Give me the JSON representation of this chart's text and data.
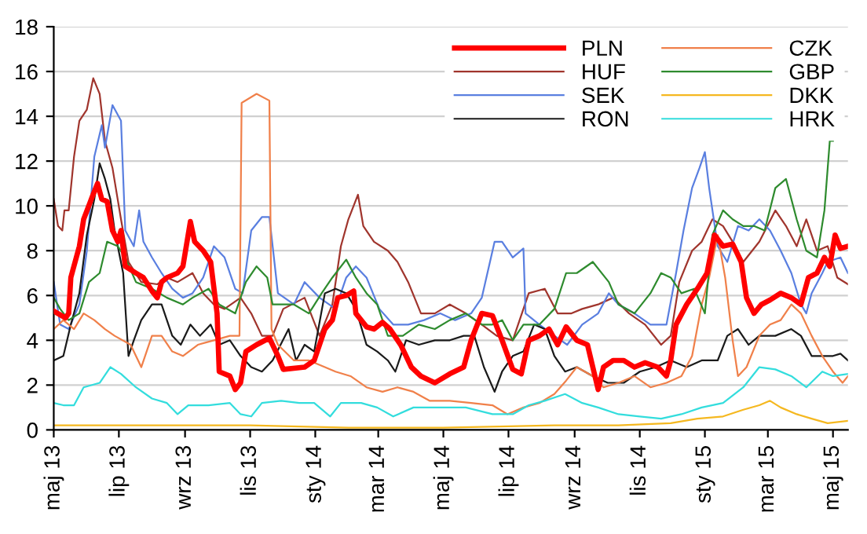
{
  "chart_data": {
    "type": "line",
    "grid": "y",
    "legend": "top right",
    "ylim": [
      0,
      18
    ],
    "yticks": [
      0,
      2,
      4,
      6,
      8,
      10,
      12,
      14,
      16,
      18
    ],
    "xlim": [
      "2013-05-01",
      "2015-05-15"
    ],
    "xticks": [
      {
        "value": "2013-05-01",
        "label": "maj 13"
      },
      {
        "value": "2013-07-01",
        "label": "lip 13"
      },
      {
        "value": "2013-09-01",
        "label": "wrz 13"
      },
      {
        "value": "2013-11-01",
        "label": "lis 13"
      },
      {
        "value": "2014-01-01",
        "label": "sty 14"
      },
      {
        "value": "2014-03-01",
        "label": "mar 14"
      },
      {
        "value": "2014-05-01",
        "label": "maj 14"
      },
      {
        "value": "2014-07-01",
        "label": "lip 14"
      },
      {
        "value": "2014-09-01",
        "label": "wrz 14"
      },
      {
        "value": "2014-11-01",
        "label": "lis 14"
      },
      {
        "value": "2015-01-01",
        "label": "sty 15"
      },
      {
        "value": "2015-03-01",
        "label": "mar 15"
      },
      {
        "value": "2015-05-01",
        "label": "maj 15"
      }
    ],
    "series": [
      {
        "name": "PLN",
        "color": "#ff0000",
        "x": [
          "2013-05-01",
          "2013-05-12",
          "2013-05-15",
          "2013-05-17",
          "2013-05-25",
          "2013-05-29",
          "2013-06-06",
          "2013-06-11",
          "2013-06-15",
          "2013-06-20",
          "2013-06-25",
          "2013-06-30",
          "2013-07-03",
          "2013-07-07",
          "2013-07-17",
          "2013-07-24",
          "2013-08-01",
          "2013-08-06",
          "2013-08-10",
          "2013-08-15",
          "2013-08-25",
          "2013-08-30",
          "2013-09-06",
          "2013-09-10",
          "2013-09-18",
          "2013-09-25",
          "2013-10-01",
          "2013-10-03",
          "2013-10-13",
          "2013-10-18",
          "2013-10-23",
          "2013-10-28",
          "2013-11-07",
          "2013-11-19",
          "2013-11-27",
          "2013-12-02",
          "2013-12-22",
          "2013-12-31",
          "2014-01-10",
          "2014-01-17",
          "2014-01-22",
          "2014-01-30",
          "2014-02-06",
          "2014-02-08",
          "2014-02-18",
          "2014-02-25",
          "2014-03-05",
          "2014-03-12",
          "2014-03-22",
          "2014-04-01",
          "2014-04-10",
          "2014-04-23",
          "2014-05-07",
          "2014-05-20",
          "2014-05-27",
          "2014-06-06",
          "2014-06-16",
          "2014-06-25",
          "2014-07-05",
          "2014-07-13",
          "2014-07-20",
          "2014-07-30",
          "2014-08-08",
          "2014-08-16",
          "2014-08-24",
          "2014-09-03",
          "2014-09-13",
          "2014-09-23",
          "2014-09-28",
          "2014-10-07",
          "2014-10-17",
          "2014-10-27",
          "2014-11-06",
          "2014-11-18",
          "2014-11-26",
          "2014-11-30",
          "2014-12-05",
          "2014-12-15",
          "2014-12-25",
          "2015-01-03",
          "2015-01-10",
          "2015-01-18",
          "2015-01-27",
          "2015-02-04",
          "2015-02-09",
          "2015-02-16",
          "2015-02-23",
          "2015-03-03",
          "2015-03-13",
          "2015-03-23",
          "2015-04-01",
          "2015-04-08",
          "2015-04-16",
          "2015-04-23",
          "2015-04-28",
          "2015-05-03",
          "2015-05-08",
          "2015-05-15"
        ],
        "values": [
          5.3,
          5.0,
          5.2,
          6.8,
          8.2,
          9.4,
          10.4,
          11.0,
          10.3,
          10.2,
          8.9,
          8.4,
          8.9,
          7.3,
          7.0,
          6.8,
          6.2,
          5.9,
          6.6,
          6.8,
          7.0,
          7.3,
          9.3,
          8.4,
          8.0,
          7.5,
          5.2,
          2.6,
          2.4,
          1.8,
          2.1,
          3.5,
          3.8,
          4.1,
          3.3,
          2.7,
          2.8,
          3.1,
          4.5,
          4.9,
          5.9,
          6.0,
          6.2,
          5.2,
          4.6,
          4.5,
          4.8,
          4.5,
          3.8,
          2.8,
          2.4,
          2.1,
          2.5,
          2.8,
          4.0,
          5.2,
          5.1,
          4.0,
          2.7,
          2.5,
          4.0,
          4.2,
          4.5,
          3.8,
          4.6,
          4.0,
          3.8,
          1.8,
          2.8,
          3.1,
          3.1,
          2.8,
          3.0,
          2.8,
          2.4,
          3.1,
          4.7,
          5.6,
          6.3,
          7.0,
          8.7,
          8.2,
          8.3,
          7.5,
          5.9,
          5.2,
          5.6,
          5.8,
          6.1,
          5.9,
          5.6,
          6.8,
          7.0,
          7.7,
          7.3,
          8.7,
          8.1,
          8.2
        ]
      },
      {
        "name": "HUF",
        "color": "#a0352d",
        "x": [
          "2013-05-01",
          "2013-05-05",
          "2013-05-09",
          "2013-05-11",
          "2013-05-15",
          "2013-05-20",
          "2013-05-25",
          "2013-06-01",
          "2013-06-07",
          "2013-06-13",
          "2013-06-18",
          "2013-06-25",
          "2013-07-03",
          "2013-07-10",
          "2013-07-22",
          "2013-08-06",
          "2013-08-15",
          "2013-08-25",
          "2013-09-08",
          "2013-09-18",
          "2013-09-28",
          "2013-10-08",
          "2013-10-23",
          "2013-11-02",
          "2013-11-12",
          "2013-11-22",
          "2013-12-02",
          "2013-12-22",
          "2014-01-05",
          "2014-01-17",
          "2014-01-25",
          "2014-02-01",
          "2014-02-10",
          "2014-02-15",
          "2014-02-25",
          "2014-03-10",
          "2014-03-19",
          "2014-03-29",
          "2014-04-10",
          "2014-04-23",
          "2014-05-07",
          "2014-05-22",
          "2014-06-06",
          "2014-06-20",
          "2014-07-05",
          "2014-07-20",
          "2014-08-04",
          "2014-08-16",
          "2014-08-29",
          "2014-09-08",
          "2014-09-23",
          "2014-10-07",
          "2014-10-22",
          "2014-11-06",
          "2014-11-21",
          "2014-11-30",
          "2014-12-08",
          "2014-12-20",
          "2014-12-29",
          "2015-01-08",
          "2015-01-18",
          "2015-01-27",
          "2015-02-06",
          "2015-02-21",
          "2015-03-08",
          "2015-03-18",
          "2015-03-28",
          "2015-04-06",
          "2015-04-16",
          "2015-04-26",
          "2015-05-05",
          "2015-05-15"
        ],
        "values": [
          10.3,
          9.1,
          8.9,
          9.8,
          9.8,
          12.2,
          13.8,
          14.3,
          15.7,
          15.0,
          12.9,
          11.7,
          9.4,
          7.5,
          6.6,
          6.5,
          6.8,
          6.6,
          7.0,
          6.1,
          5.6,
          5.4,
          5.9,
          5.2,
          4.2,
          4.2,
          5.4,
          5.9,
          4.2,
          5.6,
          8.2,
          9.4,
          10.5,
          9.1,
          8.4,
          8.0,
          7.5,
          6.6,
          5.2,
          5.2,
          5.6,
          5.2,
          4.7,
          4.2,
          4.0,
          6.1,
          6.3,
          5.2,
          5.2,
          5.4,
          5.6,
          5.9,
          5.2,
          4.7,
          3.8,
          4.2,
          6.6,
          8.0,
          8.4,
          9.4,
          9.1,
          8.4,
          7.5,
          8.4,
          9.8,
          9.1,
          8.2,
          9.4,
          8.0,
          8.2,
          6.8,
          6.5
        ]
      },
      {
        "name": "SEK",
        "color": "#5a7fe0",
        "x": [
          "2013-05-01",
          "2013-05-07",
          "2013-05-15",
          "2013-05-25",
          "2013-06-01",
          "2013-06-08",
          "2013-06-15",
          "2013-06-18",
          "2013-06-25",
          "2013-07-03",
          "2013-07-07",
          "2013-07-15",
          "2013-07-20",
          "2013-07-24",
          "2013-08-01",
          "2013-08-10",
          "2013-08-20",
          "2013-08-30",
          "2013-09-08",
          "2013-09-18",
          "2013-09-28",
          "2013-10-08",
          "2013-10-18",
          "2013-10-25",
          "2013-11-02",
          "2013-11-12",
          "2013-11-19",
          "2013-11-27",
          "2013-12-12",
          "2013-12-22",
          "2014-01-05",
          "2014-01-20",
          "2014-01-30",
          "2014-02-08",
          "2014-02-18",
          "2014-03-02",
          "2014-03-15",
          "2014-03-29",
          "2014-04-13",
          "2014-04-28",
          "2014-05-12",
          "2014-05-27",
          "2014-06-06",
          "2014-06-18",
          "2014-06-25",
          "2014-07-05",
          "2014-07-15",
          "2014-07-17",
          "2014-07-30",
          "2014-08-13",
          "2014-08-25",
          "2014-09-08",
          "2014-09-23",
          "2014-10-03",
          "2014-10-12",
          "2014-10-27",
          "2014-11-11",
          "2014-11-26",
          "2014-12-05",
          "2014-12-12",
          "2014-12-20",
          "2014-12-27",
          "2015-01-01",
          "2015-01-05",
          "2015-01-13",
          "2015-01-22",
          "2015-02-01",
          "2015-02-11",
          "2015-02-21",
          "2015-03-03",
          "2015-03-13",
          "2015-03-23",
          "2015-04-01",
          "2015-04-06",
          "2015-04-11",
          "2015-04-21",
          "2015-04-26",
          "2015-05-08",
          "2015-05-15"
        ],
        "values": [
          6.6,
          4.7,
          4.5,
          5.6,
          8.0,
          12.2,
          13.6,
          12.6,
          14.5,
          13.8,
          8.9,
          8.2,
          9.8,
          8.4,
          7.7,
          7.0,
          6.3,
          5.9,
          6.1,
          6.8,
          8.2,
          7.7,
          6.3,
          6.1,
          8.9,
          9.5,
          9.5,
          6.1,
          5.6,
          6.6,
          5.9,
          5.4,
          6.8,
          7.3,
          6.8,
          5.4,
          4.7,
          4.7,
          4.9,
          5.2,
          4.9,
          5.2,
          5.9,
          8.4,
          8.4,
          7.7,
          8.1,
          5.2,
          4.7,
          4.2,
          3.8,
          4.7,
          5.2,
          6.1,
          5.6,
          5.2,
          4.7,
          4.7,
          7.0,
          8.9,
          10.8,
          11.7,
          12.4,
          10.8,
          8.2,
          7.5,
          9.1,
          8.9,
          9.4,
          8.9,
          8.0,
          7.0,
          5.6,
          5.2,
          6.1,
          7.0,
          7.5,
          7.7,
          7.0
        ]
      },
      {
        "name": "RON",
        "color": "#1a1a1a",
        "x": [
          "2013-05-01",
          "2013-05-10",
          "2013-05-17",
          "2013-05-25",
          "2013-06-01",
          "2013-06-08",
          "2013-06-13",
          "2013-06-18",
          "2013-06-23",
          "2013-06-27",
          "2013-07-05",
          "2013-07-10",
          "2013-07-15",
          "2013-07-22",
          "2013-08-01",
          "2013-08-10",
          "2013-08-20",
          "2013-08-28",
          "2013-09-06",
          "2013-09-15",
          "2013-09-25",
          "2013-10-03",
          "2013-10-13",
          "2013-10-23",
          "2013-11-02",
          "2013-11-12",
          "2013-11-22",
          "2013-12-07",
          "2013-12-14",
          "2013-12-22",
          "2013-12-31",
          "2014-01-10",
          "2014-01-20",
          "2014-01-30",
          "2014-02-08",
          "2014-02-18",
          "2014-02-28",
          "2014-03-10",
          "2014-03-17",
          "2014-03-27",
          "2014-04-08",
          "2014-04-23",
          "2014-05-07",
          "2014-05-20",
          "2014-05-30",
          "2014-06-08",
          "2014-06-18",
          "2014-06-25",
          "2014-07-05",
          "2014-07-15",
          "2014-07-25",
          "2014-08-04",
          "2014-08-13",
          "2014-08-23",
          "2014-09-03",
          "2014-09-18",
          "2014-10-02",
          "2014-10-17",
          "2014-11-01",
          "2014-11-16",
          "2014-11-30",
          "2014-12-15",
          "2014-12-29",
          "2015-01-13",
          "2015-01-22",
          "2015-02-01",
          "2015-02-11",
          "2015-02-21",
          "2015-03-08",
          "2015-03-23",
          "2015-04-01",
          "2015-04-11",
          "2015-04-21",
          "2015-05-01",
          "2015-05-08",
          "2015-05-15"
        ],
        "values": [
          3.1,
          3.3,
          4.7,
          6.1,
          8.7,
          10.3,
          11.9,
          11.2,
          10.3,
          8.9,
          7.0,
          3.3,
          4.0,
          4.9,
          5.6,
          5.6,
          4.2,
          3.8,
          4.7,
          4.2,
          4.7,
          3.8,
          4.0,
          3.3,
          2.8,
          2.6,
          3.1,
          4.5,
          3.1,
          3.8,
          3.5,
          6.1,
          6.3,
          6.1,
          5.4,
          3.8,
          3.5,
          3.1,
          2.6,
          4.0,
          3.8,
          4.0,
          4.0,
          4.2,
          4.2,
          2.8,
          1.7,
          2.6,
          3.3,
          3.5,
          4.7,
          4.5,
          3.3,
          2.6,
          2.8,
          2.4,
          2.1,
          2.1,
          2.6,
          2.8,
          3.1,
          2.8,
          3.1,
          3.1,
          4.2,
          4.5,
          3.8,
          4.2,
          4.2,
          4.5,
          4.2,
          3.3,
          3.3,
          3.3,
          3.4,
          3.1
        ]
      },
      {
        "name": "CZK",
        "color": "#f0804a",
        "x": [
          "2013-05-01",
          "2013-05-10",
          "2013-05-20",
          "2013-05-29",
          "2013-06-08",
          "2013-06-18",
          "2013-06-27",
          "2013-07-12",
          "2013-07-22",
          "2013-08-01",
          "2013-08-10",
          "2013-08-20",
          "2013-08-30",
          "2013-09-13",
          "2013-09-28",
          "2013-10-13",
          "2013-10-22",
          "2013-10-24",
          "2013-11-07",
          "2013-11-19",
          "2013-11-21",
          "2013-11-27",
          "2013-12-12",
          "2013-12-26",
          "2014-01-10",
          "2014-01-20",
          "2014-02-03",
          "2014-02-18",
          "2014-03-05",
          "2014-03-19",
          "2014-04-03",
          "2014-04-18",
          "2014-05-07",
          "2014-05-27",
          "2014-06-16",
          "2014-06-30",
          "2014-07-15",
          "2014-07-30",
          "2014-08-13",
          "2014-08-24",
          "2014-09-03",
          "2014-09-18",
          "2014-09-28",
          "2014-10-12",
          "2014-10-27",
          "2014-11-11",
          "2014-11-26",
          "2014-12-10",
          "2014-12-20",
          "2014-12-29",
          "2015-01-05",
          "2015-01-13",
          "2015-01-20",
          "2015-01-27",
          "2015-02-01",
          "2015-02-09",
          "2015-02-21",
          "2015-03-03",
          "2015-03-13",
          "2015-03-23",
          "2015-04-01",
          "2015-04-11",
          "2015-04-21",
          "2015-05-01",
          "2015-05-10",
          "2015-05-15"
        ],
        "values": [
          4.5,
          4.9,
          4.5,
          5.2,
          4.9,
          4.5,
          4.2,
          3.8,
          2.8,
          4.2,
          4.2,
          3.5,
          3.3,
          3.8,
          4.0,
          4.2,
          4.2,
          14.6,
          15.0,
          14.7,
          4.5,
          3.8,
          3.1,
          3.1,
          2.8,
          2.6,
          2.4,
          1.9,
          1.7,
          1.9,
          1.7,
          1.3,
          1.3,
          1.2,
          1.1,
          0.7,
          1.0,
          1.2,
          1.6,
          2.2,
          2.8,
          2.4,
          1.9,
          2.1,
          2.4,
          1.9,
          2.1,
          2.4,
          3.3,
          5.6,
          6.8,
          8.7,
          6.8,
          4.0,
          2.4,
          2.8,
          4.2,
          4.7,
          4.9,
          5.6,
          5.2,
          4.2,
          3.3,
          2.6,
          2.1,
          2.4
        ]
      },
      {
        "name": "GBP",
        "color": "#2e8b2e",
        "x": [
          "2013-05-01",
          "2013-05-07",
          "2013-05-15",
          "2013-05-25",
          "2013-06-03",
          "2013-06-13",
          "2013-06-20",
          "2013-06-30",
          "2013-07-07",
          "2013-07-17",
          "2013-08-01",
          "2013-08-15",
          "2013-08-30",
          "2013-09-08",
          "2013-09-23",
          "2013-10-03",
          "2013-10-18",
          "2013-10-28",
          "2013-11-07",
          "2013-11-17",
          "2013-11-22",
          "2013-12-12",
          "2013-12-26",
          "2014-01-07",
          "2014-01-17",
          "2014-01-30",
          "2014-02-08",
          "2014-02-18",
          "2014-02-28",
          "2014-03-10",
          "2014-03-24",
          "2014-04-08",
          "2014-04-23",
          "2014-05-07",
          "2014-05-22",
          "2014-06-06",
          "2014-06-16",
          "2014-06-25",
          "2014-07-05",
          "2014-07-15",
          "2014-07-30",
          "2014-08-13",
          "2014-08-24",
          "2014-09-03",
          "2014-09-18",
          "2014-10-03",
          "2014-10-12",
          "2014-10-27",
          "2014-11-11",
          "2014-11-21",
          "2014-11-30",
          "2014-12-10",
          "2014-12-22",
          "2015-01-01",
          "2015-01-08",
          "2015-01-18",
          "2015-01-27",
          "2015-02-06",
          "2015-02-16",
          "2015-02-26",
          "2015-03-08",
          "2015-03-18",
          "2015-03-28",
          "2015-04-06",
          "2015-04-16",
          "2015-04-23",
          "2015-04-28",
          "2015-05-01"
        ],
        "values": [
          5.9,
          5.4,
          4.9,
          5.2,
          6.6,
          7.0,
          8.4,
          8.2,
          7.7,
          6.6,
          6.3,
          5.9,
          5.6,
          5.9,
          6.3,
          5.6,
          5.2,
          6.6,
          7.3,
          6.8,
          5.6,
          5.6,
          5.2,
          6.1,
          6.8,
          7.6,
          6.8,
          6.1,
          5.6,
          4.2,
          4.2,
          4.7,
          4.5,
          4.9,
          5.2,
          4.7,
          4.7,
          4.9,
          4.0,
          4.7,
          4.7,
          5.4,
          7.0,
          7.0,
          7.5,
          6.6,
          5.6,
          5.2,
          6.1,
          7.0,
          6.8,
          6.1,
          6.3,
          5.2,
          8.7,
          9.8,
          9.4,
          9.1,
          9.1,
          8.9,
          10.8,
          11.2,
          9.4,
          8.0,
          7.7,
          9.8,
          12.9,
          12.9
        ]
      },
      {
        "name": "DKK",
        "color": "#f5b820",
        "x": [
          "2013-05-01",
          "2013-08-01",
          "2013-11-01",
          "2014-02-01",
          "2014-05-01",
          "2014-08-13",
          "2014-09-23",
          "2014-10-12",
          "2014-11-30",
          "2014-12-25",
          "2015-01-18",
          "2015-02-06",
          "2015-02-21",
          "2015-03-03",
          "2015-03-13",
          "2015-03-28",
          "2015-04-11",
          "2015-04-26",
          "2015-05-15"
        ],
        "values": [
          0.2,
          0.2,
          0.2,
          0.1,
          0.1,
          0.2,
          0.2,
          0.2,
          0.3,
          0.5,
          0.6,
          0.9,
          1.1,
          1.3,
          1.0,
          0.7,
          0.5,
          0.3,
          0.4
        ]
      },
      {
        "name": "HRK",
        "color": "#33dddd",
        "x": [
          "2013-05-01",
          "2013-05-10",
          "2013-05-20",
          "2013-05-29",
          "2013-06-13",
          "2013-06-23",
          "2013-07-03",
          "2013-07-17",
          "2013-08-01",
          "2013-08-15",
          "2013-08-25",
          "2013-09-04",
          "2013-09-23",
          "2013-10-13",
          "2013-10-23",
          "2013-11-02",
          "2013-11-12",
          "2013-11-30",
          "2013-12-17",
          "2013-12-31",
          "2014-01-15",
          "2014-01-25",
          "2014-02-13",
          "2014-02-28",
          "2014-03-15",
          "2014-04-03",
          "2014-04-28",
          "2014-05-22",
          "2014-06-16",
          "2014-07-05",
          "2014-07-20",
          "2014-08-04",
          "2014-08-23",
          "2014-09-08",
          "2014-09-23",
          "2014-10-12",
          "2014-11-01",
          "2014-11-21",
          "2014-12-10",
          "2014-12-29",
          "2015-01-18",
          "2015-02-06",
          "2015-02-21",
          "2015-03-08",
          "2015-03-23",
          "2015-04-06",
          "2015-04-21",
          "2015-05-01",
          "2015-05-15"
        ],
        "values": [
          1.2,
          1.1,
          1.1,
          1.9,
          2.1,
          2.8,
          2.5,
          1.9,
          1.4,
          1.2,
          0.7,
          1.1,
          1.1,
          1.2,
          0.7,
          0.6,
          1.2,
          1.3,
          1.2,
          1.2,
          0.6,
          1.2,
          1.2,
          1.0,
          0.6,
          1.0,
          1.0,
          1.0,
          0.7,
          0.7,
          1.1,
          1.3,
          1.6,
          1.2,
          1.0,
          0.7,
          0.6,
          0.5,
          0.7,
          1.0,
          1.2,
          1.9,
          2.8,
          2.7,
          2.4,
          1.9,
          2.6,
          2.4,
          2.5
        ]
      }
    ]
  }
}
